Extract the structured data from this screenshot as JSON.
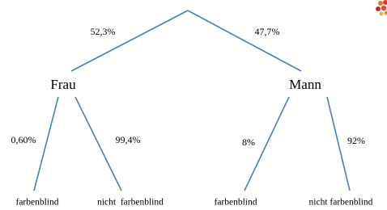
{
  "nodes": [
    {
      "label": "Frau"
    },
    {
      "label": "Mann"
    },
    {
      "label": "farbenblind"
    },
    {
      "label": "nicht  farbenblind"
    },
    {
      "label": "farbenblind"
    },
    {
      "label": "nicht farbenblind"
    }
  ],
  "edges": [
    {
      "label": "52,3%"
    },
    {
      "label": "47,7%"
    },
    {
      "label": "0,60%"
    },
    {
      "label": "99,4%"
    },
    {
      "label": "8%"
    },
    {
      "label": "92%"
    }
  ]
}
